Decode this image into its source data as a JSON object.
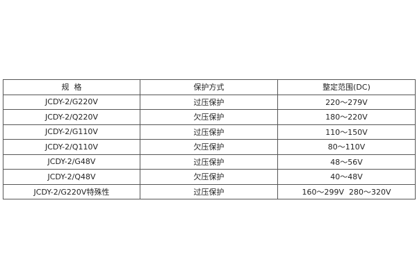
{
  "table": {
    "headers": [
      "规  格",
      "保护方式",
      "整定范围(DC)"
    ],
    "rows": [
      [
        "JCDY-2/G220V",
        "过压保护",
        "220～279V"
      ],
      [
        "JCDY-2/Q220V",
        "欠压保护",
        "180～220V"
      ],
      [
        "JCDY-2/G110V",
        "过压保护",
        "110～150V"
      ],
      [
        "JCDY-2/Q110V",
        "欠压保护",
        "80～110V"
      ],
      [
        "JCDY-2/G48V",
        "过压保护",
        "48～56V"
      ],
      [
        "JCDY-2/Q48V",
        "欠压保护",
        "40～48V"
      ],
      [
        "JCDY-2/G220V特殊性",
        "过压保护",
        "160～299V  280～320V"
      ]
    ]
  }
}
